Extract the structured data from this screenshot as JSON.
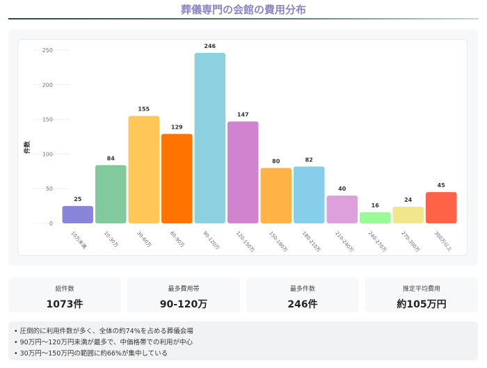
{
  "title": "葬儀専門の会館の費用分布",
  "chart_data": {
    "type": "bar",
    "title": "",
    "xlabel": "",
    "ylabel": "件数",
    "ylim": [
      0,
      250
    ],
    "yticks": [
      0,
      50,
      100,
      150,
      200,
      250
    ],
    "grid": false,
    "categories": [
      "10万未満",
      "10-30万",
      "30-60万",
      "60-90万",
      "90-120万",
      "120-150万",
      "150-180万",
      "180-210万",
      "210-240万",
      "240-270万",
      "270-300万",
      "300万以上"
    ],
    "values": [
      25,
      84,
      155,
      129,
      246,
      147,
      80,
      82,
      40,
      16,
      24,
      45
    ],
    "colors": [
      "#8884d8",
      "#82ca9d",
      "#ffc658",
      "#ff7300",
      "#8dd1e1",
      "#d084d0",
      "#ffb347",
      "#87ceeb",
      "#dda0dd",
      "#98fb98",
      "#f0e68c",
      "#ff6347"
    ]
  },
  "stats": [
    {
      "label": "総件数",
      "value": "1073件"
    },
    {
      "label": "最多費用帯",
      "value": "90-120万"
    },
    {
      "label": "最多件数",
      "value": "246件"
    },
    {
      "label": "推定平均費用",
      "value": "約105万円"
    }
  ],
  "notes": [
    "• 圧倒的に利用件数が多く、全体の約74%を占める葬儀会場",
    "• 90万円〜120万円未満が最多で、中価格帯での利用が中心",
    "• 30万円〜150万円の範囲に約66%が集中している"
  ]
}
